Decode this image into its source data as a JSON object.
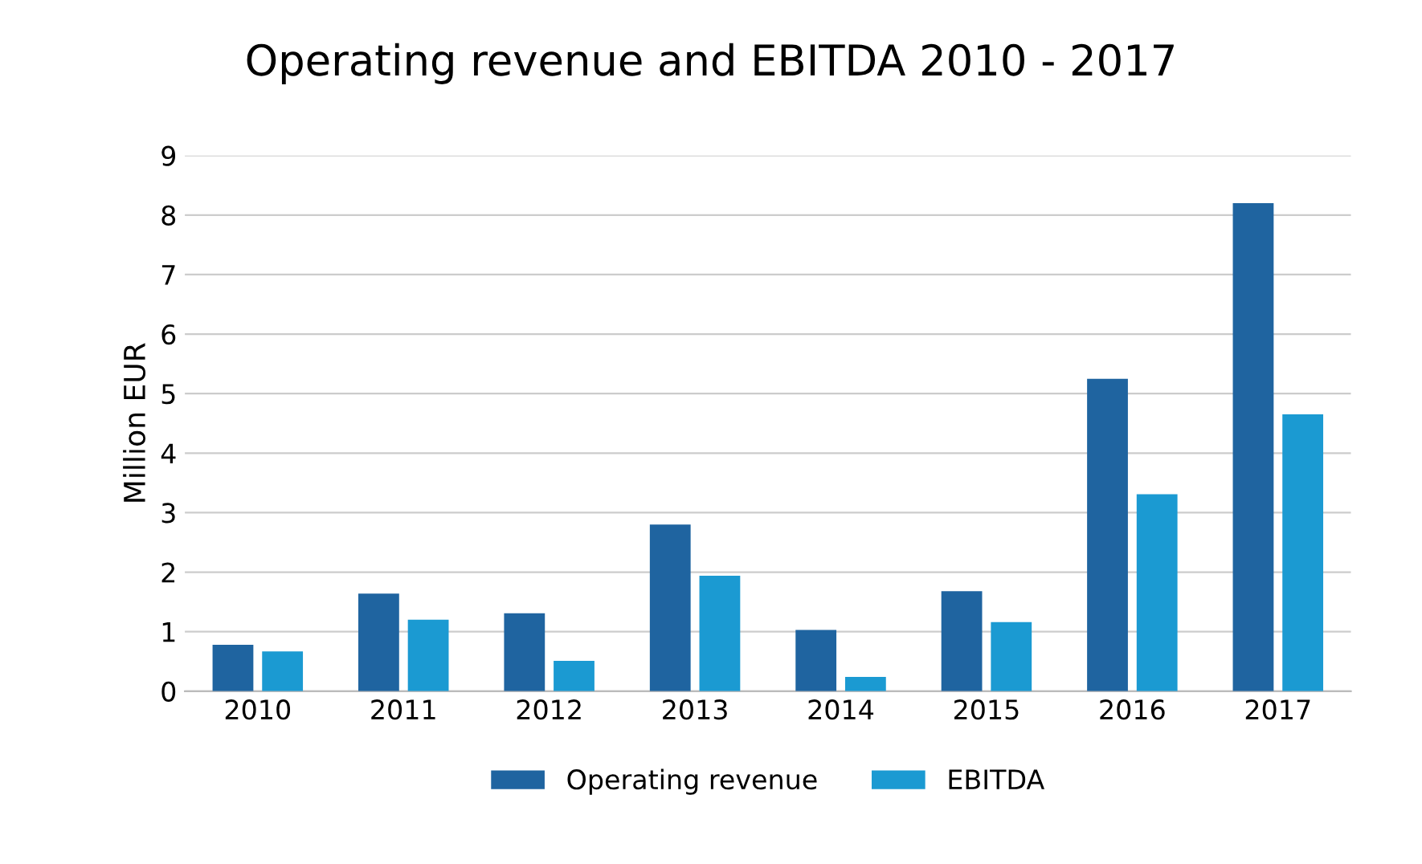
{
  "chart_data": {
    "type": "bar",
    "title": "Operating revenue and EBITDA 2010 - 2017",
    "ylabel": "Million EUR",
    "categories": [
      "2010",
      "2011",
      "2012",
      "2013",
      "2014",
      "2015",
      "2016",
      "2017"
    ],
    "series": [
      {
        "name": "Operating revenue",
        "color": "#1f64a0",
        "values": [
          0.78,
          1.64,
          1.31,
          2.8,
          1.03,
          1.68,
          5.25,
          8.2
        ]
      },
      {
        "name": "EBITDA",
        "color": "#1b9ad2",
        "values": [
          0.67,
          1.2,
          0.51,
          1.94,
          0.24,
          1.16,
          3.31,
          4.65
        ]
      }
    ],
    "ylim": [
      0,
      9
    ],
    "yticks": [
      0,
      1,
      2,
      3,
      4,
      5,
      6,
      7,
      8,
      9
    ],
    "grid": "y",
    "legend": "bottom"
  }
}
